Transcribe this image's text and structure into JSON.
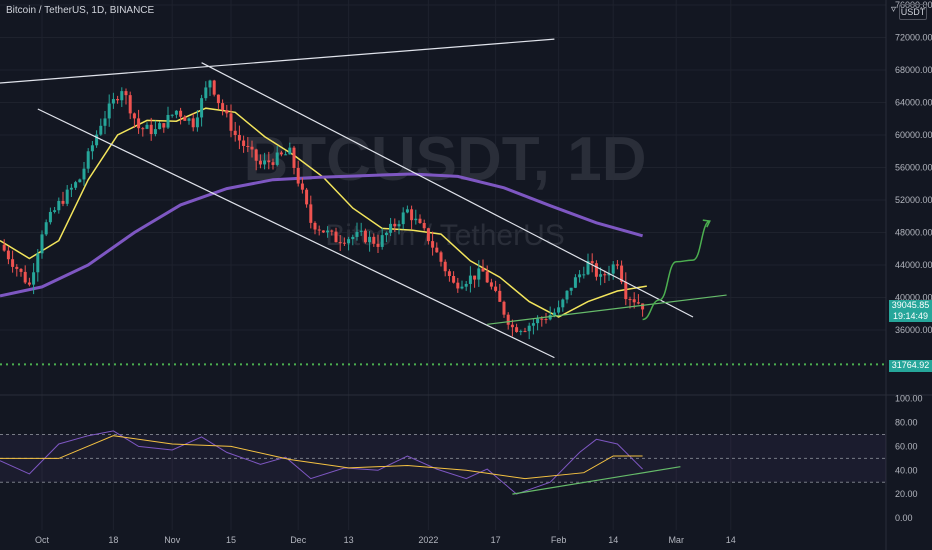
{
  "header": {
    "symbol_line": "Bitcoin / TetherUS, 1D, BINANCE"
  },
  "currency_box": "USDT",
  "watermark": {
    "symbol": "BTCUSDT, 1D",
    "name": "Bitcoin / TetherUS"
  },
  "price_tags": {
    "last_price": "39045.85",
    "countdown": "19:14:49",
    "level": "31764.92"
  },
  "colors": {
    "background": "#131722",
    "up": "#26a69a",
    "down": "#ef5350",
    "ma_fast": "#f3e55c",
    "ma_slow": "#7e57c2",
    "channel": "#e0e3eb",
    "trendline": "#66bb6a",
    "projection": "#4caf50",
    "rsi": "#7e57c2",
    "rsi_ma": "#f5c242",
    "level_line": "#4caf50"
  },
  "chart_data": [
    {
      "type": "candlestick",
      "title": "",
      "x_tick_labels": [
        "Oct",
        "18",
        "Nov",
        "15",
        "Dec",
        "13",
        "2022",
        "17",
        "Feb",
        "14",
        "Mar",
        "14"
      ],
      "y_tick_labels": [
        "76000.00",
        "72000.00",
        "68000.00",
        "64000.00",
        "60000.00",
        "56000.00",
        "52000.00",
        "48000.00",
        "44000.00",
        "40000.00",
        "36000.00"
      ],
      "ylim": [
        33500,
        78000
      ],
      "close_series": [
        {
          "x": "2021-09-21",
          "close": 46500
        },
        {
          "x": "2021-09-28",
          "close": 41500
        },
        {
          "x": "2021-10-01",
          "close": 48200
        },
        {
          "x": "2021-10-05",
          "close": 51500
        },
        {
          "x": "2021-10-10",
          "close": 54600
        },
        {
          "x": "2021-10-15",
          "close": 61500
        },
        {
          "x": "2021-10-20",
          "close": 65800
        },
        {
          "x": "2021-10-24",
          "close": 60900
        },
        {
          "x": "2021-10-28",
          "close": 60500
        },
        {
          "x": "2021-11-02",
          "close": 63000
        },
        {
          "x": "2021-11-06",
          "close": 61500
        },
        {
          "x": "2021-11-10",
          "close": 66900
        },
        {
          "x": "2021-11-12",
          "close": 64200
        },
        {
          "x": "2021-11-16",
          "close": 60000
        },
        {
          "x": "2021-11-22",
          "close": 56300
        },
        {
          "x": "2021-11-29",
          "close": 57800
        },
        {
          "x": "2021-12-04",
          "close": 49300
        },
        {
          "x": "2021-12-10",
          "close": 47200
        },
        {
          "x": "2021-12-16",
          "close": 47600
        },
        {
          "x": "2021-12-20",
          "close": 46700
        },
        {
          "x": "2021-12-27",
          "close": 50700
        },
        {
          "x": "2022-01-01",
          "close": 47300
        },
        {
          "x": "2022-01-07",
          "close": 41600
        },
        {
          "x": "2022-01-14",
          "close": 43100
        },
        {
          "x": "2022-01-21",
          "close": 36300
        },
        {
          "x": "2022-01-24",
          "close": 36400
        },
        {
          "x": "2022-02-01",
          "close": 38400
        },
        {
          "x": "2022-02-04",
          "close": 41500
        },
        {
          "x": "2022-02-08",
          "close": 44200
        },
        {
          "x": "2022-02-11",
          "close": 42300
        },
        {
          "x": "2022-02-15",
          "close": 44500
        },
        {
          "x": "2022-02-17",
          "close": 40500
        },
        {
          "x": "2022-02-21",
          "close": 39045.85
        }
      ],
      "moving_averages": [
        {
          "color_key": "ma_fast",
          "points": [
            {
              "x": "2021-09-21",
              "y": 47000
            },
            {
              "x": "2021-09-28",
              "y": 44800
            },
            {
              "x": "2021-10-05",
              "y": 47000
            },
            {
              "x": "2021-10-12",
              "y": 54500
            },
            {
              "x": "2021-10-19",
              "y": 60000
            },
            {
              "x": "2021-10-26",
              "y": 61800
            },
            {
              "x": "2021-11-02",
              "y": 61700
            },
            {
              "x": "2021-11-09",
              "y": 63300
            },
            {
              "x": "2021-11-16",
              "y": 62800
            },
            {
              "x": "2021-11-23",
              "y": 59800
            },
            {
              "x": "2021-11-30",
              "y": 57500
            },
            {
              "x": "2021-12-07",
              "y": 54800
            },
            {
              "x": "2021-12-14",
              "y": 51000
            },
            {
              "x": "2021-12-21",
              "y": 48500
            },
            {
              "x": "2021-12-28",
              "y": 48300
            },
            {
              "x": "2022-01-04",
              "y": 47800
            },
            {
              "x": "2022-01-11",
              "y": 44500
            },
            {
              "x": "2022-01-18",
              "y": 42500
            },
            {
              "x": "2022-01-25",
              "y": 39500
            },
            {
              "x": "2022-02-01",
              "y": 37600
            },
            {
              "x": "2022-02-08",
              "y": 39500
            },
            {
              "x": "2022-02-15",
              "y": 40800
            },
            {
              "x": "2022-02-22",
              "y": 41400
            }
          ]
        },
        {
          "color_key": "ma_slow",
          "points": [
            {
              "x": "2021-09-21",
              "y": 40200
            },
            {
              "x": "2021-10-01",
              "y": 41300
            },
            {
              "x": "2021-10-12",
              "y": 44000
            },
            {
              "x": "2021-10-23",
              "y": 48000
            },
            {
              "x": "2021-11-03",
              "y": 51400
            },
            {
              "x": "2021-11-14",
              "y": 53400
            },
            {
              "x": "2021-11-25",
              "y": 54500
            },
            {
              "x": "2021-12-06",
              "y": 54800
            },
            {
              "x": "2021-12-17",
              "y": 55000
            },
            {
              "x": "2021-12-28",
              "y": 55200
            },
            {
              "x": "2022-01-08",
              "y": 54900
            },
            {
              "x": "2022-01-19",
              "y": 53500
            },
            {
              "x": "2022-01-30",
              "y": 51300
            },
            {
              "x": "2022-02-10",
              "y": 49200
            },
            {
              "x": "2022-02-21",
              "y": 47600
            }
          ]
        }
      ],
      "annotations": {
        "channel_upper_outer": [
          {
            "x": "2021-09-21",
            "y": 66400
          },
          {
            "x": "2022-01-31",
            "y": 71800
          }
        ],
        "channel_upper": [
          {
            "x": "2021-11-08",
            "y": 68900
          },
          {
            "x": "2022-03-05",
            "y": 37600
          }
        ],
        "channel_lower": [
          {
            "x": "2021-09-30",
            "y": 63200
          },
          {
            "x": "2022-01-31",
            "y": 32600
          }
        ],
        "support_trendline": [
          {
            "x": "2022-01-15",
            "y": 36700
          },
          {
            "x": "2022-03-13",
            "y": 40300
          }
        ],
        "projection_path": [
          {
            "x": "2022-02-21",
            "y": 37300
          },
          {
            "x": "2022-02-25",
            "y": 39700
          },
          {
            "x": "2022-03-01",
            "y": 44400
          },
          {
            "x": "2022-03-05",
            "y": 44600
          },
          {
            "x": "2022-03-09",
            "y": 49400
          }
        ],
        "horizontal_level": 31764.92
      }
    },
    {
      "type": "line",
      "title": "",
      "y_tick_labels": [
        "100.00",
        "80.00",
        "60.00",
        "40.00",
        "20.00",
        "0.00"
      ],
      "ylim": [
        0,
        100
      ],
      "bands": [
        70,
        50,
        30
      ],
      "series": [
        {
          "color_key": "rsi",
          "points": [
            {
              "x": "2021-09-21",
              "y": 48
            },
            {
              "x": "2021-09-28",
              "y": 37
            },
            {
              "x": "2021-10-05",
              "y": 62
            },
            {
              "x": "2021-10-12",
              "y": 69
            },
            {
              "x": "2021-10-18",
              "y": 73
            },
            {
              "x": "2021-10-24",
              "y": 60
            },
            {
              "x": "2021-11-01",
              "y": 57
            },
            {
              "x": "2021-11-08",
              "y": 68
            },
            {
              "x": "2021-11-14",
              "y": 55
            },
            {
              "x": "2021-11-22",
              "y": 45
            },
            {
              "x": "2021-11-28",
              "y": 51
            },
            {
              "x": "2021-12-04",
              "y": 33
            },
            {
              "x": "2021-12-12",
              "y": 42
            },
            {
              "x": "2021-12-20",
              "y": 40
            },
            {
              "x": "2021-12-27",
              "y": 52
            },
            {
              "x": "2022-01-03",
              "y": 41
            },
            {
              "x": "2022-01-10",
              "y": 33
            },
            {
              "x": "2022-01-15",
              "y": 41
            },
            {
              "x": "2022-01-22",
              "y": 20
            },
            {
              "x": "2022-01-30",
              "y": 30
            },
            {
              "x": "2022-02-06",
              "y": 55
            },
            {
              "x": "2022-02-10",
              "y": 66
            },
            {
              "x": "2022-02-15",
              "y": 62
            },
            {
              "x": "2022-02-21",
              "y": 41
            }
          ]
        },
        {
          "color_key": "rsi_ma",
          "points": [
            {
              "x": "2021-09-21",
              "y": 50
            },
            {
              "x": "2021-10-05",
              "y": 50
            },
            {
              "x": "2021-10-18",
              "y": 69
            },
            {
              "x": "2021-11-01",
              "y": 62
            },
            {
              "x": "2021-11-15",
              "y": 60
            },
            {
              "x": "2021-11-29",
              "y": 49
            },
            {
              "x": "2021-12-13",
              "y": 42
            },
            {
              "x": "2021-12-27",
              "y": 44
            },
            {
              "x": "2022-01-10",
              "y": 40
            },
            {
              "x": "2022-01-24",
              "y": 33
            },
            {
              "x": "2022-02-07",
              "y": 38
            },
            {
              "x": "2022-02-14",
              "y": 52
            },
            {
              "x": "2022-02-21",
              "y": 52
            }
          ]
        }
      ],
      "support_trendline": [
        {
          "x": "2022-01-21",
          "y": 20
        },
        {
          "x": "2022-03-02",
          "y": 43
        }
      ]
    }
  ]
}
